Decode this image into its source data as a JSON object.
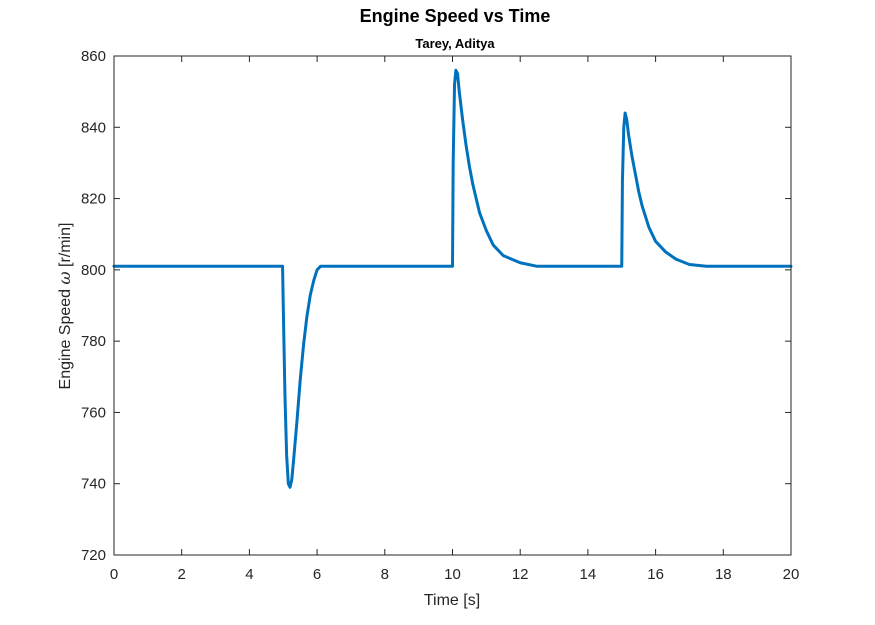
{
  "chart_data": {
    "type": "line",
    "title": "Engine Speed vs Time",
    "subtitle": "Tarey, Aditya",
    "xlabel": "Time [s]",
    "ylabel_prefix": "Engine Speed ",
    "ylabel_symbol": "ω",
    "ylabel_suffix": " [r/min]",
    "xlim": [
      0,
      20
    ],
    "ylim": [
      720,
      860
    ],
    "xticks": [
      0,
      2,
      4,
      6,
      8,
      10,
      12,
      14,
      16,
      18,
      20
    ],
    "yticks": [
      720,
      740,
      760,
      780,
      800,
      820,
      840,
      860
    ],
    "grid": true,
    "line_color": "#0072BD",
    "series": [
      {
        "values_description_omitted": true,
        "x": [
          0,
          4.98,
          5.0,
          5.05,
          5.1,
          5.15,
          5.2,
          5.25,
          5.3,
          5.4,
          5.5,
          5.6,
          5.7,
          5.8,
          5.9,
          6.0,
          6.1,
          6.3,
          8.0,
          10.0,
          10.02,
          10.06,
          10.1,
          10.15,
          10.2,
          10.3,
          10.4,
          10.5,
          10.6,
          10.8,
          11.0,
          11.2,
          11.5,
          12.0,
          12.5,
          13.0,
          15.0,
          15.02,
          15.06,
          15.1,
          15.15,
          15.2,
          15.3,
          15.4,
          15.5,
          15.6,
          15.8,
          16.0,
          16.3,
          16.6,
          17.0,
          17.5,
          20.0
        ],
        "y": [
          801,
          801,
          790,
          765,
          748,
          740,
          739,
          741,
          746,
          757,
          769,
          779,
          787,
          793,
          797,
          800,
          801,
          801,
          801,
          801,
          830,
          852,
          856,
          855,
          850,
          842,
          835,
          829,
          824,
          816,
          811,
          807,
          804,
          802,
          801,
          801,
          801,
          825,
          840,
          844,
          842,
          838,
          832,
          827,
          822,
          818,
          812,
          808,
          805,
          803,
          801.5,
          801,
          801
        ]
      }
    ]
  }
}
